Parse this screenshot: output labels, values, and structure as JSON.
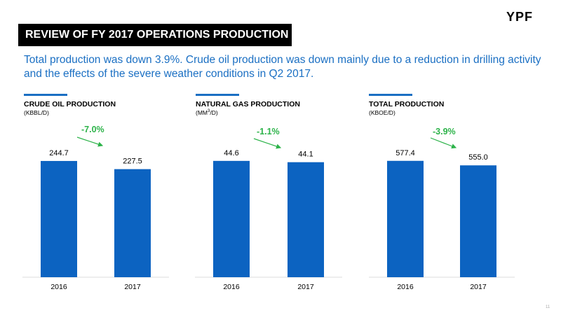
{
  "logo": "YPF",
  "slide_title": "REVIEW OF FY 2017 OPERATIONS PRODUCTION",
  "subtitle": "Total production was down 3.9%. Crude oil production was down mainly due to a reduction in drilling activity and the effects of the severe weather conditions in Q2 2017.",
  "page_number": "11",
  "colors": {
    "bar": "#0c63c1",
    "accent": "#1a6fc3",
    "change": "#2db34a"
  },
  "chart_data": [
    {
      "type": "bar",
      "title": "CRUDE OIL PRODUCTION",
      "unit": "(KBBL/D)",
      "categories": [
        "2016",
        "2017"
      ],
      "values": [
        244.7,
        227.5
      ],
      "value_labels": [
        "244.7",
        "227.5"
      ],
      "change_label": "-7.0%",
      "ylim": [
        0,
        280
      ]
    },
    {
      "type": "bar",
      "title": "NATURAL GAS PRODUCTION",
      "unit_main": "(MM",
      "unit_sup": "3",
      "unit_tail": "/D)",
      "categories": [
        "2016",
        "2017"
      ],
      "values": [
        44.6,
        44.1
      ],
      "value_labels": [
        "44.6",
        "44.1"
      ],
      "change_label": "-1.1%",
      "ylim": [
        0,
        51
      ]
    },
    {
      "type": "bar",
      "title": "TOTAL PRODUCTION",
      "unit": "(KBOE/D)",
      "categories": [
        "2016",
        "2017"
      ],
      "values": [
        577.4,
        555.0
      ],
      "value_labels": [
        "577.4",
        "555.0"
      ],
      "change_label": "-3.9%",
      "ylim": [
        0,
        660
      ]
    }
  ]
}
